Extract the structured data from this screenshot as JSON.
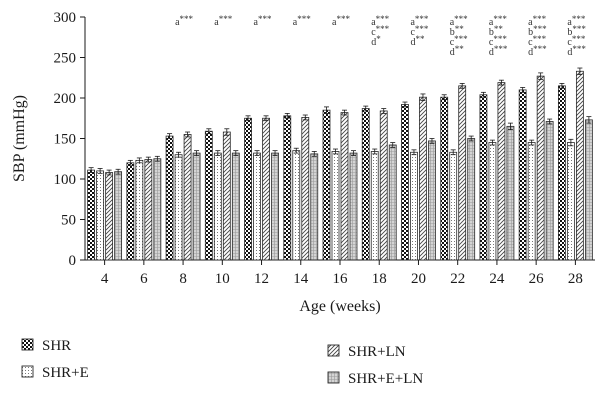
{
  "chart_data": {
    "type": "bar",
    "title": "",
    "xlabel": "Age (weeks)",
    "ylabel": "SBP (mmHg)",
    "ylim": [
      0,
      300
    ],
    "yticks": [
      0,
      50,
      100,
      150,
      200,
      250,
      300
    ],
    "grid": false,
    "legend_position": "bottom",
    "categories": [
      "4",
      "6",
      "8",
      "10",
      "12",
      "14",
      "16",
      "18",
      "20",
      "22",
      "24",
      "26",
      "28"
    ],
    "series": [
      {
        "name": "SHR",
        "pattern": "checker",
        "values": [
          111,
          120,
          153,
          159,
          175,
          178,
          185,
          187,
          192,
          201,
          204,
          210,
          215
        ],
        "errors": [
          3,
          3,
          3,
          3,
          3,
          3,
          4,
          3,
          3,
          3,
          3,
          3,
          3
        ]
      },
      {
        "name": "SHR+E",
        "pattern": "dots",
        "values": [
          110,
          123,
          130,
          132,
          132,
          135,
          134,
          134,
          133,
          133,
          145,
          145,
          145
        ],
        "errors": [
          3,
          3,
          3,
          3,
          3,
          3,
          3,
          3,
          3,
          3,
          3,
          3,
          4
        ]
      },
      {
        "name": "SHR+LN",
        "pattern": "hatch",
        "values": [
          108,
          124,
          155,
          158,
          175,
          176,
          182,
          184,
          201,
          215,
          219,
          227,
          233
        ],
        "errors": [
          3,
          3,
          3,
          4,
          3,
          3,
          3,
          3,
          4,
          3,
          3,
          4,
          4
        ]
      },
      {
        "name": "SHR+E+LN",
        "pattern": "fine",
        "values": [
          109,
          125,
          132,
          132,
          132,
          131,
          132,
          142,
          147,
          150,
          165,
          171,
          173
        ],
        "errors": [
          3,
          3,
          3,
          3,
          3,
          3,
          3,
          3,
          3,
          3,
          4,
          3,
          4
        ]
      }
    ],
    "significance": [
      [],
      [],
      [
        {
          "letter": "a",
          "stars": "***"
        }
      ],
      [
        {
          "letter": "a",
          "stars": "***"
        }
      ],
      [
        {
          "letter": "a",
          "stars": "***"
        }
      ],
      [
        {
          "letter": "a",
          "stars": "***"
        }
      ],
      [
        {
          "letter": "a",
          "stars": "***"
        }
      ],
      [
        {
          "letter": "a",
          "stars": "***"
        },
        {
          "letter": "c",
          "stars": "***"
        },
        {
          "letter": "d",
          "stars": "*"
        }
      ],
      [
        {
          "letter": "a",
          "stars": "***"
        },
        {
          "letter": "c",
          "stars": "***"
        },
        {
          "letter": "d",
          "stars": "**"
        }
      ],
      [
        {
          "letter": "a",
          "stars": "***"
        },
        {
          "letter": "b",
          "stars": "**"
        },
        {
          "letter": "c",
          "stars": "***"
        },
        {
          "letter": "d",
          "stars": "**"
        }
      ],
      [
        {
          "letter": "a",
          "stars": "***"
        },
        {
          "letter": "b",
          "stars": "**"
        },
        {
          "letter": "c",
          "stars": "***"
        },
        {
          "letter": "d",
          "stars": "***"
        }
      ],
      [
        {
          "letter": "a",
          "stars": "***"
        },
        {
          "letter": "b",
          "stars": "***"
        },
        {
          "letter": "c",
          "stars": "***"
        },
        {
          "letter": "d",
          "stars": "***"
        }
      ],
      [
        {
          "letter": "a",
          "stars": "***"
        },
        {
          "letter": "b",
          "stars": "***"
        },
        {
          "letter": "c",
          "stars": "***"
        },
        {
          "letter": "d",
          "stars": "***"
        }
      ]
    ]
  }
}
